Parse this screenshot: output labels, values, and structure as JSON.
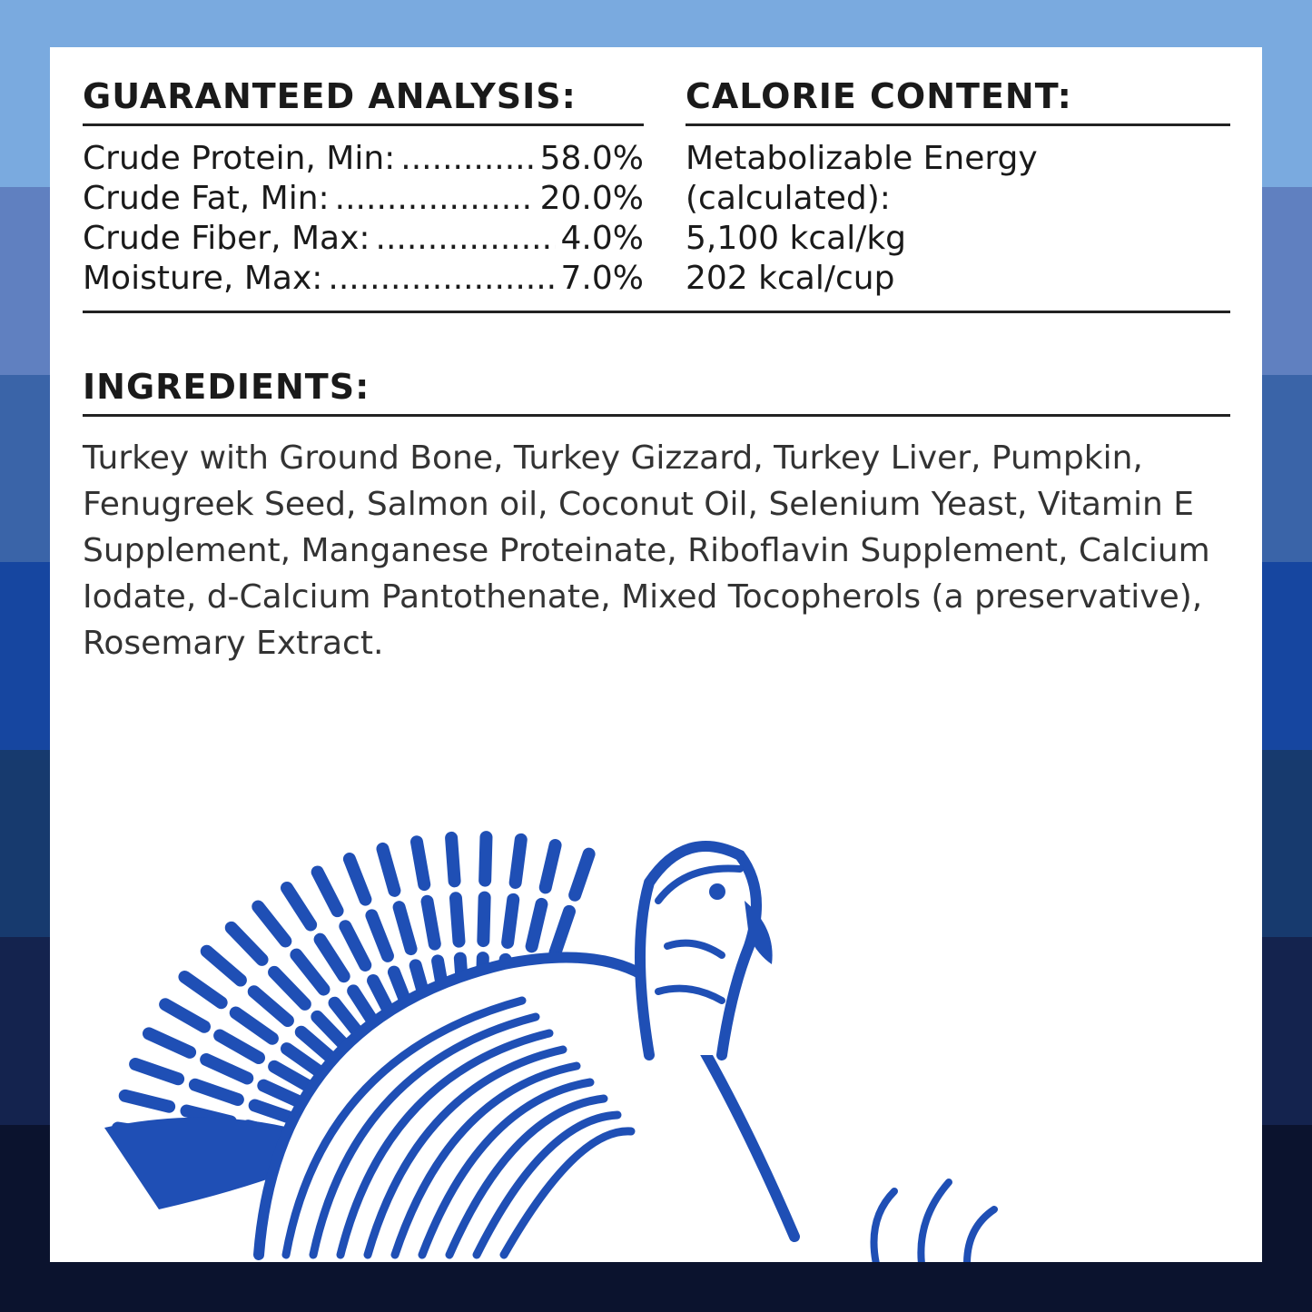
{
  "background_colors": [
    "#7aaadf",
    "#6080c0",
    "#3a64a8",
    "#1646a0",
    "#173a6e",
    "#14234e",
    "#0b132e"
  ],
  "illustration_color": "#1f4fb5",
  "illustration": "turkey",
  "guaranteed_analysis": {
    "heading": "GUARANTEED ANALYSIS:",
    "rows": [
      {
        "label": "Crude Protein, Min:",
        "value": "58.0%"
      },
      {
        "label": "Crude Fat, Min:",
        "value": "20.0%"
      },
      {
        "label": "Crude Fiber, Max:",
        "value": "4.0%"
      },
      {
        "label": "Moisture, Max:",
        "value": "7.0%"
      }
    ]
  },
  "calorie_content": {
    "heading": "CALORIE CONTENT:",
    "lines": [
      "Metabolizable Energy",
      "(calculated):",
      "5,100 kcal/kg",
      "202 kcal/cup"
    ]
  },
  "ingredients": {
    "heading": "INGREDIENTS:",
    "text": "Turkey with Ground Bone, Turkey Gizzard, Turkey Liver, Pumpkin, Fenugreek Seed, Salmon oil, Coconut Oil, Selenium Yeast, Vitamin E Supplement, Manganese Proteinate, Riboflavin Supplement, Calcium Iodate, d-Calcium Pantothenate, Mixed Tocopherols (a preservative), Rosemary Extract."
  }
}
